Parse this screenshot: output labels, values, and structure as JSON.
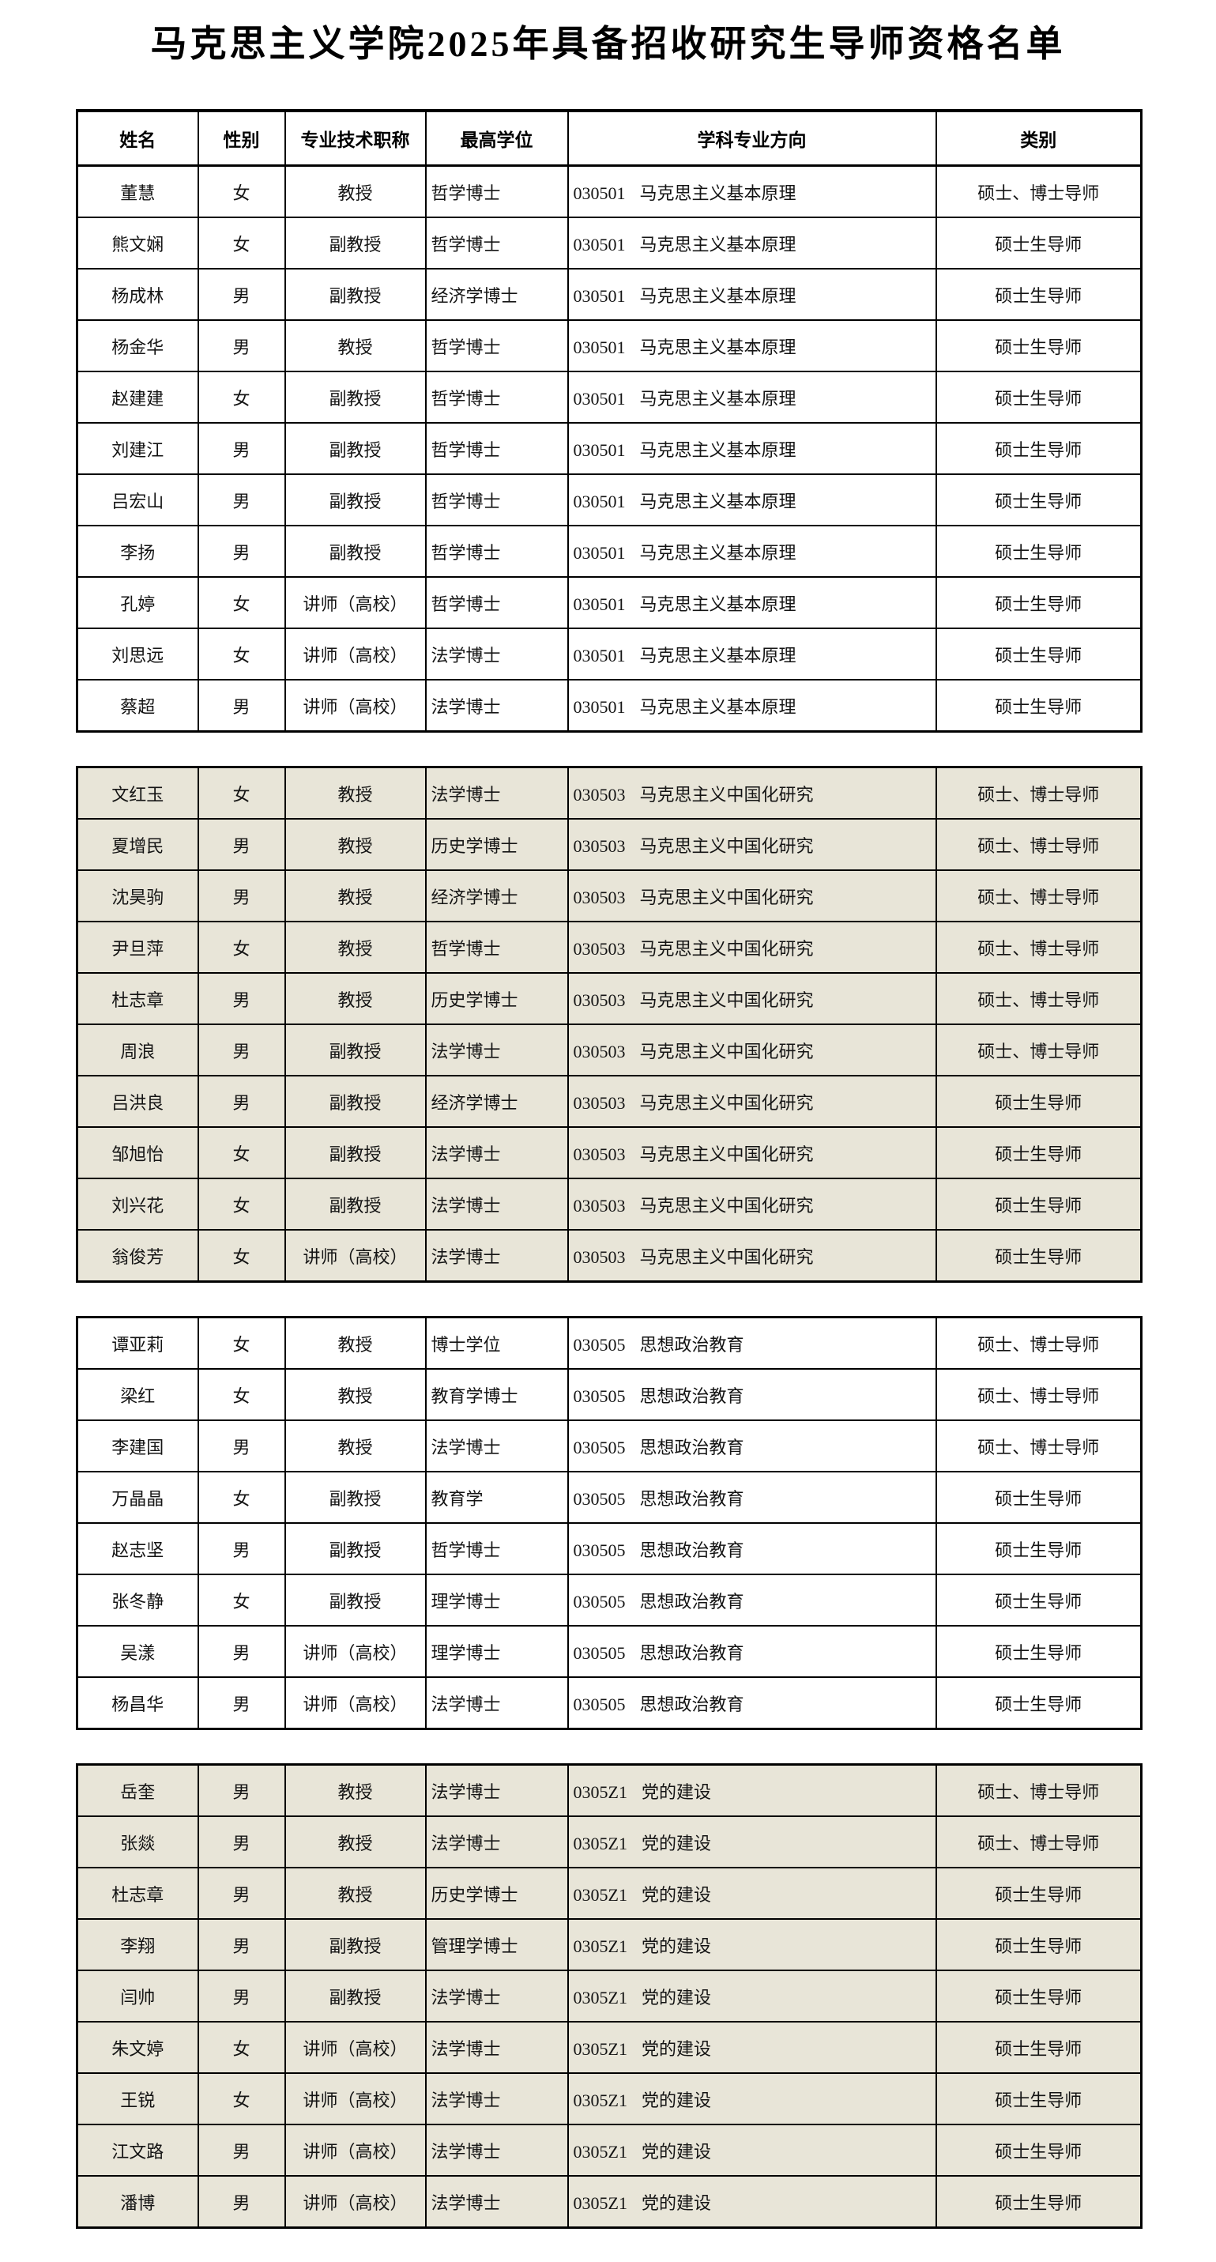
{
  "title": "马克思主义学院2025年具备招收研究生导师资格名单",
  "columns": [
    "姓名",
    "性别",
    "专业技术职称",
    "最高学位",
    "学科专业方向",
    "类别"
  ],
  "colors": {
    "tinted_row_bg": "#e8e5d8",
    "plain_row_bg": "#ffffff",
    "border": "#000000",
    "text": "#141414"
  },
  "category_values": [
    "硕士、博士导师",
    "硕士生导师"
  ],
  "sections": [
    {
      "has_header": true,
      "tinted": false,
      "rows": [
        {
          "name": "董慧",
          "gender": "女",
          "title": "教授",
          "degree": "哲学博士",
          "major_code": "030501",
          "major_name": "马克思主义基本原理",
          "category": "硕士、博士导师"
        },
        {
          "name": "熊文娴",
          "gender": "女",
          "title": "副教授",
          "degree": "哲学博士",
          "major_code": "030501",
          "major_name": "马克思主义基本原理",
          "category": "硕士生导师"
        },
        {
          "name": "杨成林",
          "gender": "男",
          "title": "副教授",
          "degree": "经济学博士",
          "major_code": "030501",
          "major_name": "马克思主义基本原理",
          "category": "硕士生导师"
        },
        {
          "name": "杨金华",
          "gender": "男",
          "title": "教授",
          "degree": "哲学博士",
          "major_code": "030501",
          "major_name": "马克思主义基本原理",
          "category": "硕士生导师"
        },
        {
          "name": "赵建建",
          "gender": "女",
          "title": "副教授",
          "degree": "哲学博士",
          "major_code": "030501",
          "major_name": "马克思主义基本原理",
          "category": "硕士生导师"
        },
        {
          "name": "刘建江",
          "gender": "男",
          "title": "副教授",
          "degree": "哲学博士",
          "major_code": "030501",
          "major_name": "马克思主义基本原理",
          "category": "硕士生导师"
        },
        {
          "name": "吕宏山",
          "gender": "男",
          "title": "副教授",
          "degree": "哲学博士",
          "major_code": "030501",
          "major_name": "马克思主义基本原理",
          "category": "硕士生导师"
        },
        {
          "name": "李扬",
          "gender": "男",
          "title": "副教授",
          "degree": "哲学博士",
          "major_code": "030501",
          "major_name": "马克思主义基本原理",
          "category": "硕士生导师"
        },
        {
          "name": "孔婷",
          "gender": "女",
          "title": "讲师（高校）",
          "degree": "哲学博士",
          "major_code": "030501",
          "major_name": "马克思主义基本原理",
          "category": "硕士生导师"
        },
        {
          "name": "刘思远",
          "gender": "女",
          "title": "讲师（高校）",
          "degree": "法学博士",
          "major_code": "030501",
          "major_name": "马克思主义基本原理",
          "category": "硕士生导师"
        },
        {
          "name": "蔡超",
          "gender": "男",
          "title": "讲师（高校）",
          "degree": "法学博士",
          "major_code": "030501",
          "major_name": "马克思主义基本原理",
          "category": "硕士生导师"
        }
      ]
    },
    {
      "has_header": false,
      "tinted": true,
      "rows": [
        {
          "name": "文红玉",
          "gender": "女",
          "title": "教授",
          "degree": "法学博士",
          "major_code": "030503",
          "major_name": "马克思主义中国化研究",
          "category": "硕士、博士导师"
        },
        {
          "name": "夏增民",
          "gender": "男",
          "title": "教授",
          "degree": "历史学博士",
          "major_code": "030503",
          "major_name": "马克思主义中国化研究",
          "category": "硕士、博士导师"
        },
        {
          "name": "沈昊驹",
          "gender": "男",
          "title": "教授",
          "degree": "经济学博士",
          "major_code": "030503",
          "major_name": "马克思主义中国化研究",
          "category": "硕士、博士导师"
        },
        {
          "name": "尹旦萍",
          "gender": "女",
          "title": "教授",
          "degree": "哲学博士",
          "major_code": "030503",
          "major_name": "马克思主义中国化研究",
          "category": "硕士、博士导师"
        },
        {
          "name": "杜志章",
          "gender": "男",
          "title": "教授",
          "degree": "历史学博士",
          "major_code": "030503",
          "major_name": "马克思主义中国化研究",
          "category": "硕士、博士导师"
        },
        {
          "name": "周浪",
          "gender": "男",
          "title": "副教授",
          "degree": "法学博士",
          "major_code": "030503",
          "major_name": "马克思主义中国化研究",
          "category": "硕士、博士导师"
        },
        {
          "name": "吕洪良",
          "gender": "男",
          "title": "副教授",
          "degree": "经济学博士",
          "major_code": "030503",
          "major_name": "马克思主义中国化研究",
          "category": "硕士生导师"
        },
        {
          "name": "邹旭怡",
          "gender": "女",
          "title": "副教授",
          "degree": "法学博士",
          "major_code": "030503",
          "major_name": "马克思主义中国化研究",
          "category": "硕士生导师"
        },
        {
          "name": "刘兴花",
          "gender": "女",
          "title": "副教授",
          "degree": "法学博士",
          "major_code": "030503",
          "major_name": "马克思主义中国化研究",
          "category": "硕士生导师"
        },
        {
          "name": "翁俊芳",
          "gender": "女",
          "title": "讲师（高校）",
          "degree": "法学博士",
          "major_code": "030503",
          "major_name": "马克思主义中国化研究",
          "category": "硕士生导师"
        }
      ]
    },
    {
      "has_header": false,
      "tinted": false,
      "rows": [
        {
          "name": "谭亚莉",
          "gender": "女",
          "title": "教授",
          "degree": "博士学位",
          "major_code": "030505",
          "major_name": "思想政治教育",
          "category": "硕士、博士导师"
        },
        {
          "name": "梁红",
          "gender": "女",
          "title": "教授",
          "degree": "教育学博士",
          "major_code": "030505",
          "major_name": "思想政治教育",
          "category": "硕士、博士导师"
        },
        {
          "name": "李建国",
          "gender": "男",
          "title": "教授",
          "degree": "法学博士",
          "major_code": "030505",
          "major_name": "思想政治教育",
          "category": "硕士、博士导师"
        },
        {
          "name": "万晶晶",
          "gender": "女",
          "title": "副教授",
          "degree": "教育学",
          "major_code": "030505",
          "major_name": "思想政治教育",
          "category": "硕士生导师"
        },
        {
          "name": "赵志坚",
          "gender": "男",
          "title": "副教授",
          "degree": "哲学博士",
          "major_code": "030505",
          "major_name": "思想政治教育",
          "category": "硕士生导师"
        },
        {
          "name": "张冬静",
          "gender": "女",
          "title": "副教授",
          "degree": "理学博士",
          "major_code": "030505",
          "major_name": "思想政治教育",
          "category": "硕士生导师"
        },
        {
          "name": "吴漾",
          "gender": "男",
          "title": "讲师（高校）",
          "degree": "理学博士",
          "major_code": "030505",
          "major_name": "思想政治教育",
          "category": "硕士生导师"
        },
        {
          "name": "杨昌华",
          "gender": "男",
          "title": "讲师（高校）",
          "degree": "法学博士",
          "major_code": "030505",
          "major_name": "思想政治教育",
          "category": "硕士生导师"
        }
      ]
    },
    {
      "has_header": false,
      "tinted": true,
      "rows": [
        {
          "name": "岳奎",
          "gender": "男",
          "title": "教授",
          "degree": "法学博士",
          "major_code": "0305Z1",
          "major_name": "党的建设",
          "category": "硕士、博士导师"
        },
        {
          "name": "张燚",
          "gender": "男",
          "title": "教授",
          "degree": "法学博士",
          "major_code": "0305Z1",
          "major_name": "党的建设",
          "category": "硕士、博士导师"
        },
        {
          "name": "杜志章",
          "gender": "男",
          "title": "教授",
          "degree": "历史学博士",
          "major_code": "0305Z1",
          "major_name": "党的建设",
          "category": "硕士生导师"
        },
        {
          "name": "李翔",
          "gender": "男",
          "title": "副教授",
          "degree": "管理学博士",
          "major_code": "0305Z1",
          "major_name": "党的建设",
          "category": "硕士生导师"
        },
        {
          "name": "闫帅",
          "gender": "男",
          "title": "副教授",
          "degree": "法学博士",
          "major_code": "0305Z1",
          "major_name": "党的建设",
          "category": "硕士生导师"
        },
        {
          "name": "朱文婷",
          "gender": "女",
          "title": "讲师（高校）",
          "degree": "法学博士",
          "major_code": "0305Z1",
          "major_name": "党的建设",
          "category": "硕士生导师"
        },
        {
          "name": "王锐",
          "gender": "女",
          "title": "讲师（高校）",
          "degree": "法学博士",
          "major_code": "0305Z1",
          "major_name": "党的建设",
          "category": "硕士生导师"
        },
        {
          "name": "江文路",
          "gender": "男",
          "title": "讲师（高校）",
          "degree": "法学博士",
          "major_code": "0305Z1",
          "major_name": "党的建设",
          "category": "硕士生导师"
        },
        {
          "name": "潘博",
          "gender": "男",
          "title": "讲师（高校）",
          "degree": "法学博士",
          "major_code": "0305Z1",
          "major_name": "党的建设",
          "category": "硕士生导师"
        }
      ]
    }
  ]
}
